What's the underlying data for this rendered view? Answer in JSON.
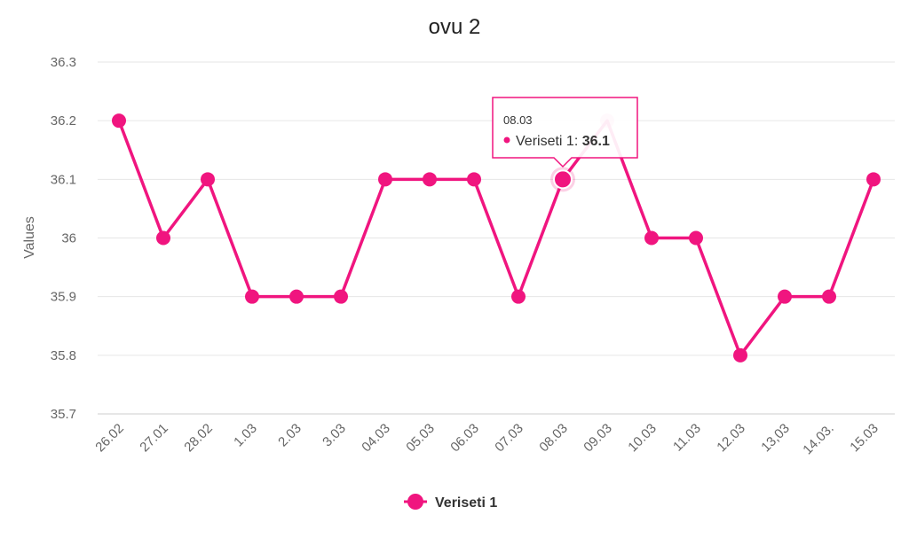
{
  "chart_data": {
    "type": "line",
    "title": "ovu 2",
    "ylabel": "Values",
    "ylim": [
      35.7,
      36.3
    ],
    "yticks": [
      "35.7",
      "35.8",
      "35.9",
      "36",
      "36.1",
      "36.2",
      "36.3"
    ],
    "categories": [
      "26.02",
      "27.01",
      "28.02",
      "1.03",
      "2.03",
      "3.03",
      "04.03",
      "05.03",
      "06.03",
      "07.03",
      "08.03",
      "09.03",
      "10.03",
      "11.03",
      "12.03",
      "13,03",
      "14.03.",
      "15.03"
    ],
    "series": [
      {
        "name": "Veriseti 1",
        "color": "#f0157f",
        "values": [
          36.2,
          36.0,
          36.1,
          35.9,
          35.9,
          35.9,
          36.1,
          36.1,
          36.1,
          35.9,
          36.1,
          36.2,
          36.0,
          36.0,
          35.8,
          35.9,
          35.9,
          36.1
        ]
      }
    ],
    "legend_position": "bottom",
    "grid": true,
    "tooltip": {
      "category": "08.03",
      "series_label": "Veriseti 1:",
      "value": "36.1",
      "active_index": 10
    }
  }
}
